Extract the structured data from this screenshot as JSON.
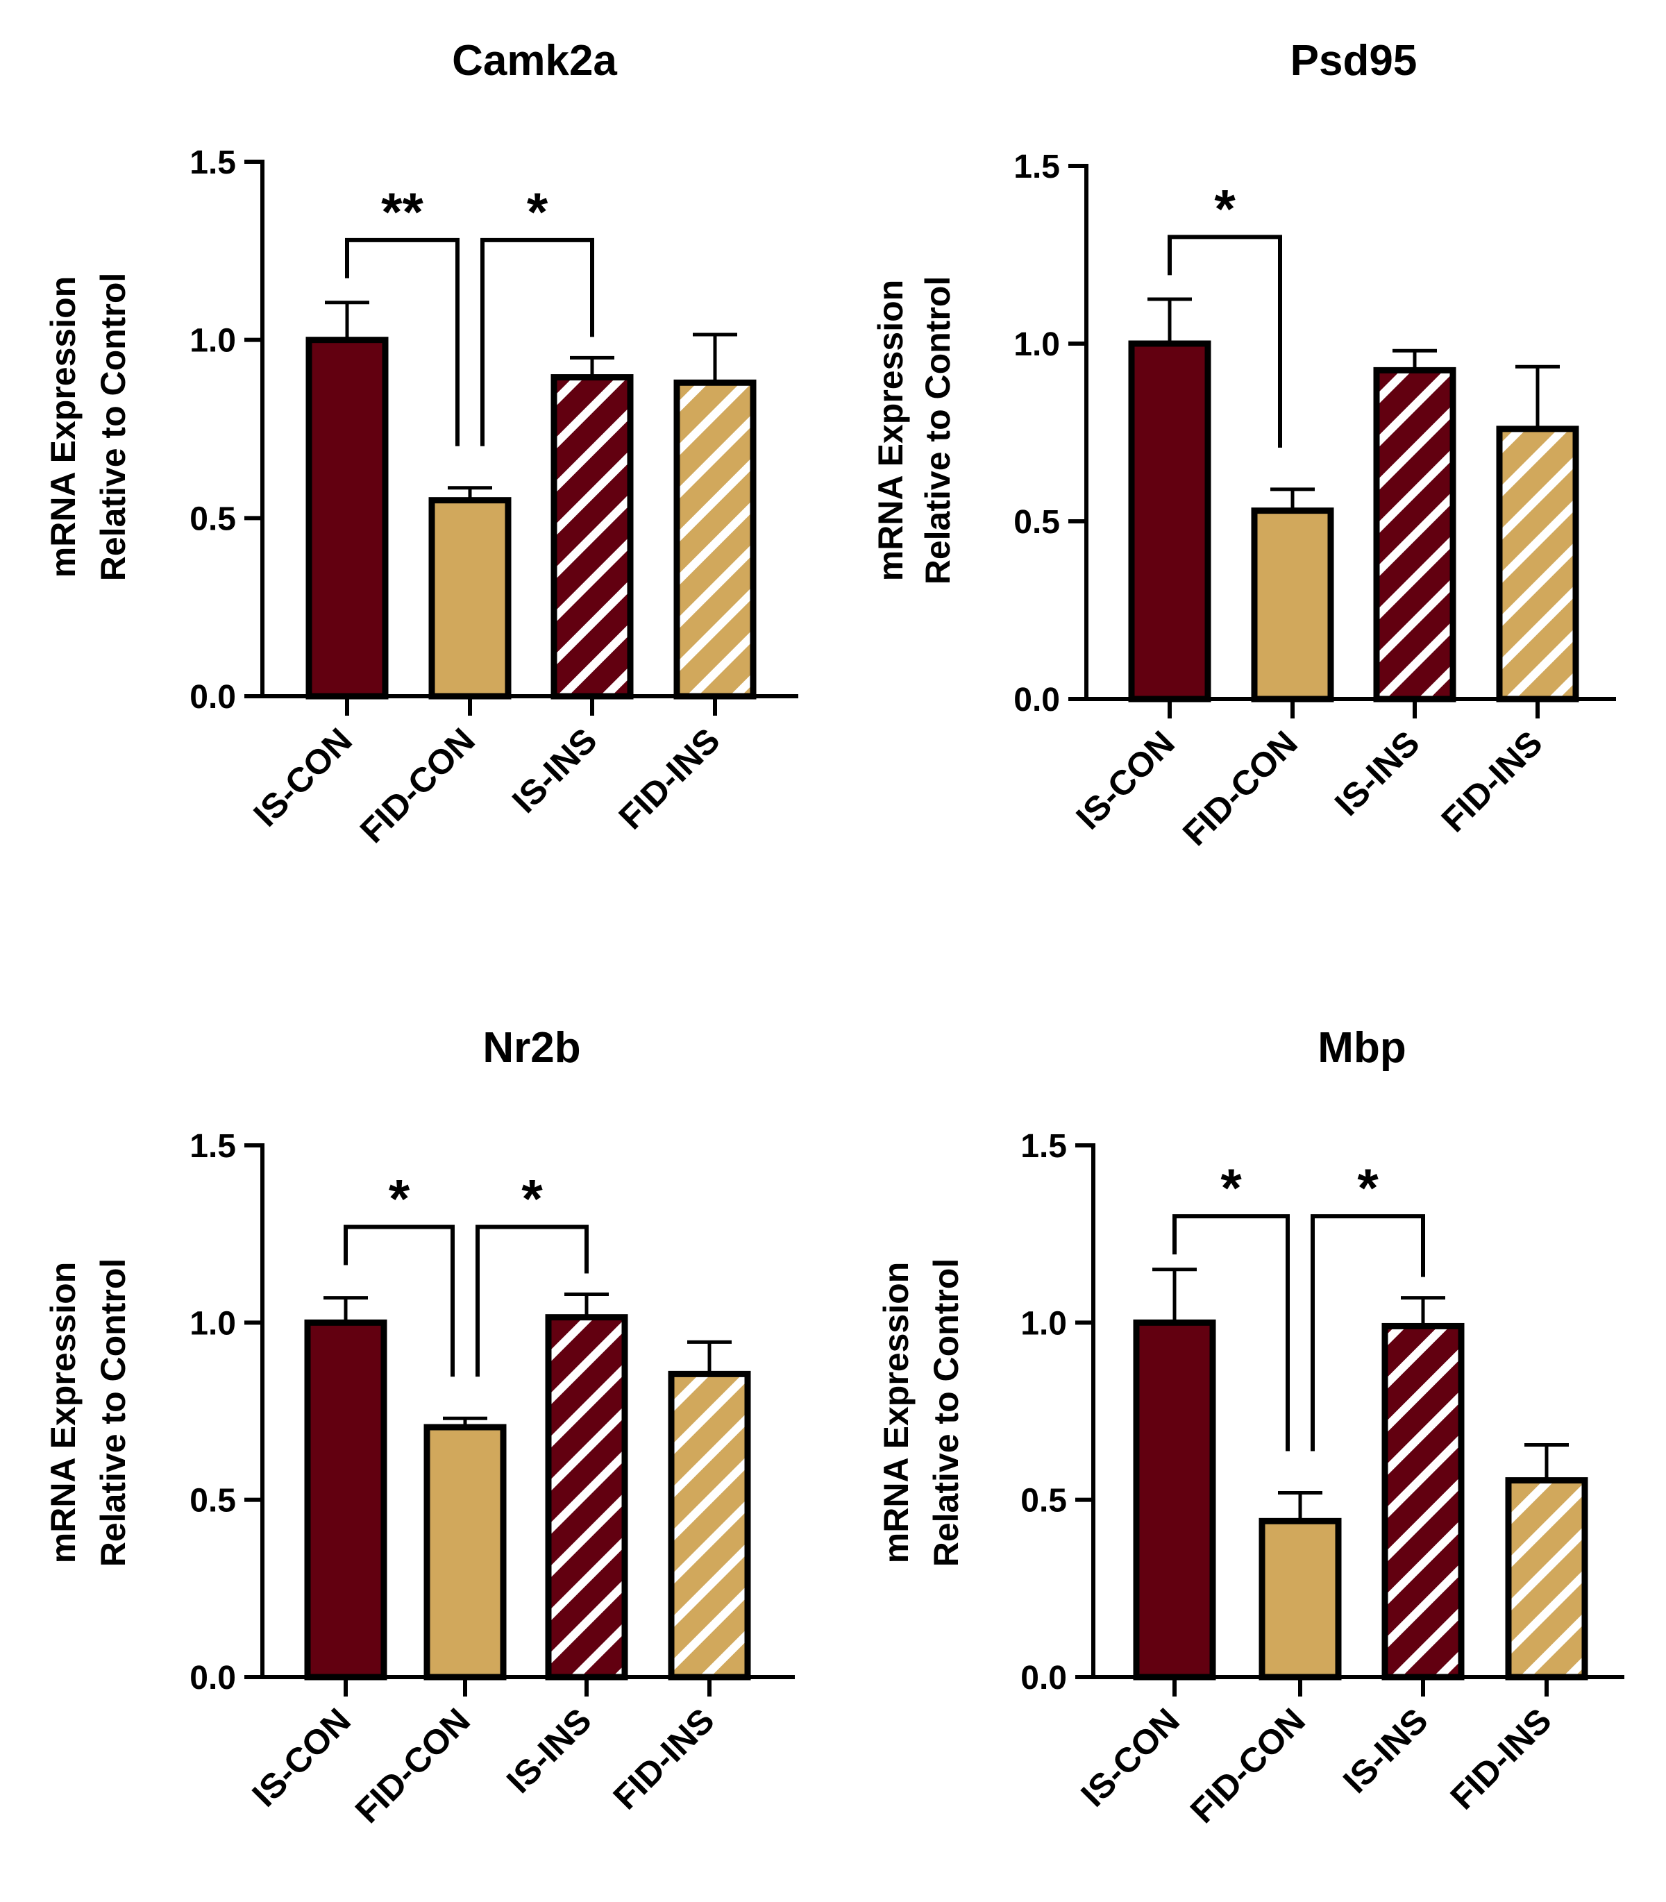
{
  "colors": {
    "is_fill": "#620010",
    "fid_fill": "#d1a85c",
    "stripe": "#ffffff",
    "outline": "#000000"
  },
  "chart_data": [
    {
      "type": "bar",
      "title": "Camk2a",
      "ylabel": [
        "mRNA Expression",
        "Relative to Control"
      ],
      "categories": [
        "IS-CON",
        "FID-CON",
        "IS-INS",
        "FID-INS"
      ],
      "patterns": [
        "solid",
        "solid",
        "striped",
        "striped"
      ],
      "fills": [
        "is",
        "fid",
        "is",
        "fid"
      ],
      "values": [
        1.0,
        0.55,
        0.895,
        0.88
      ],
      "errors": [
        0.105,
        0.035,
        0.055,
        0.135
      ],
      "ylim": [
        0,
        1.5
      ],
      "yticks": [
        "0.0",
        "0.5",
        "1.0",
        "1.5"
      ],
      "significance": [
        {
          "from": 0,
          "to": 1,
          "label": "**",
          "level": 1.28
        },
        {
          "from": 1,
          "to": 2,
          "label": "*",
          "level": 1.28
        }
      ]
    },
    {
      "type": "bar",
      "title": "Psd95",
      "ylabel": [
        "mRNA Expression",
        "Relative to Control"
      ],
      "categories": [
        "IS-CON",
        "FID-CON",
        "IS-INS",
        "FID-INS"
      ],
      "patterns": [
        "solid",
        "solid",
        "striped",
        "striped"
      ],
      "fills": [
        "is",
        "fid",
        "is",
        "fid"
      ],
      "values": [
        1.0,
        0.53,
        0.925,
        0.76
      ],
      "errors": [
        0.125,
        0.06,
        0.055,
        0.175
      ],
      "ylim": [
        0,
        1.5
      ],
      "yticks": [
        "0.0",
        "0.5",
        "1.0",
        "1.5"
      ],
      "significance": [
        {
          "from": 0,
          "to": 1,
          "label": "*",
          "level": 1.3
        }
      ]
    },
    {
      "type": "bar",
      "title": "Nr2b",
      "ylabel": [
        "mRNA Expression",
        "Relative to Control"
      ],
      "categories": [
        "IS-CON",
        "FID-CON",
        "IS-INS",
        "FID-INS"
      ],
      "patterns": [
        "solid",
        "solid",
        "striped",
        "striped"
      ],
      "fills": [
        "is",
        "fid",
        "is",
        "fid"
      ],
      "values": [
        1.0,
        0.705,
        1.015,
        0.855
      ],
      "errors": [
        0.07,
        0.025,
        0.065,
        0.09
      ],
      "ylim": [
        0,
        1.5
      ],
      "yticks": [
        "0.0",
        "0.5",
        "1.0",
        "1.5"
      ],
      "significance": [
        {
          "from": 0,
          "to": 1,
          "label": "*",
          "level": 1.27
        },
        {
          "from": 1,
          "to": 2,
          "label": "*",
          "level": 1.27
        }
      ]
    },
    {
      "type": "bar",
      "title": "Mbp",
      "ylabel": [
        "mRNA Expression",
        "Relative to Control"
      ],
      "categories": [
        "IS-CON",
        "FID-CON",
        "IS-INS",
        "FID-INS"
      ],
      "patterns": [
        "solid",
        "solid",
        "striped",
        "striped"
      ],
      "fills": [
        "is",
        "fid",
        "is",
        "fid"
      ],
      "values": [
        1.0,
        0.44,
        0.99,
        0.555
      ],
      "errors": [
        0.15,
        0.08,
        0.08,
        0.1
      ],
      "ylim": [
        0,
        1.5
      ],
      "yticks": [
        "0.0",
        "0.5",
        "1.0",
        "1.5"
      ],
      "significance": [
        {
          "from": 0,
          "to": 1,
          "label": "*",
          "level": 1.3
        },
        {
          "from": 1,
          "to": 2,
          "label": "*",
          "level": 1.3
        }
      ]
    }
  ]
}
